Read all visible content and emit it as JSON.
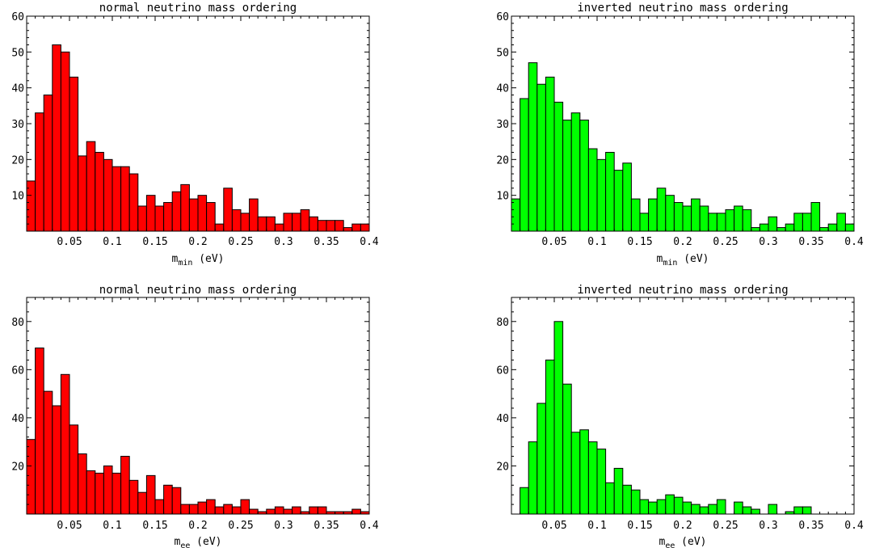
{
  "chart_data": [
    {
      "type": "bar",
      "title": "normal neutrino mass ordering",
      "xlabel_main": "m",
      "xlabel_sub": "min",
      "xlabel_unit": "(eV)",
      "xlim": [
        0,
        0.4
      ],
      "ylim": [
        0,
        60
      ],
      "xticks": [
        "0.05",
        "0.1",
        "0.15",
        "0.2",
        "0.25",
        "0.3",
        "0.35",
        "0.4"
      ],
      "yticks": [
        "10",
        "20",
        "30",
        "40",
        "50",
        "60"
      ],
      "bar_color": "#ff0000",
      "grid": false,
      "values": [
        14,
        33,
        38,
        52,
        50,
        43,
        21,
        25,
        22,
        20,
        18,
        18,
        16,
        7,
        10,
        7,
        8,
        11,
        13,
        9,
        10,
        8,
        2,
        12,
        6,
        5,
        9,
        4,
        4,
        2,
        5,
        5,
        6,
        4,
        3,
        3,
        3,
        1,
        2,
        2
      ]
    },
    {
      "type": "bar",
      "title": "inverted neutrino mass ordering",
      "xlabel_main": "m",
      "xlabel_sub": "min",
      "xlabel_unit": "(eV)",
      "xlim": [
        0,
        0.4
      ],
      "ylim": [
        0,
        60
      ],
      "xticks": [
        "0.05",
        "0.1",
        "0.15",
        "0.2",
        "0.25",
        "0.3",
        "0.35",
        "0.4"
      ],
      "yticks": [
        "10",
        "20",
        "30",
        "40",
        "50",
        "60"
      ],
      "bar_color": "#00ff00",
      "grid": false,
      "values": [
        9,
        37,
        47,
        41,
        43,
        36,
        31,
        33,
        31,
        23,
        20,
        22,
        17,
        19,
        9,
        5,
        9,
        12,
        10,
        8,
        7,
        9,
        7,
        5,
        5,
        6,
        7,
        6,
        1,
        2,
        4,
        1,
        2,
        5,
        5,
        8,
        1,
        2,
        5,
        2
      ]
    },
    {
      "type": "bar",
      "title": "normal neutrino mass ordering",
      "xlabel_main": "m",
      "xlabel_sub": "ee",
      "xlabel_unit": "(eV)",
      "xlim": [
        0,
        0.4
      ],
      "ylim": [
        0,
        90
      ],
      "xticks": [
        "0.05",
        "0.1",
        "0.15",
        "0.2",
        "0.25",
        "0.3",
        "0.35",
        "0.4"
      ],
      "yticks": [
        "20",
        "40",
        "60",
        "80"
      ],
      "bar_color": "#ff0000",
      "grid": false,
      "values": [
        31,
        69,
        51,
        45,
        58,
        37,
        25,
        18,
        17,
        20,
        17,
        24,
        14,
        9,
        16,
        6,
        12,
        11,
        4,
        4,
        5,
        6,
        3,
        4,
        3,
        6,
        2,
        1,
        2,
        3,
        2,
        3,
        1,
        3,
        3,
        1,
        1,
        1,
        2,
        1
      ]
    },
    {
      "type": "bar",
      "title": "inverted neutrino mass ordering",
      "xlabel_main": "m",
      "xlabel_sub": "ee",
      "xlabel_unit": "(eV)",
      "xlim": [
        0,
        0.4
      ],
      "ylim": [
        0,
        90
      ],
      "xticks": [
        "0.05",
        "0.1",
        "0.15",
        "0.2",
        "0.25",
        "0.3",
        "0.35",
        "0.4"
      ],
      "yticks": [
        "20",
        "40",
        "60",
        "80"
      ],
      "bar_color": "#00ff00",
      "grid": false,
      "values": [
        0,
        11,
        30,
        46,
        64,
        80,
        54,
        34,
        35,
        30,
        27,
        13,
        19,
        12,
        10,
        6,
        5,
        6,
        8,
        7,
        5,
        4,
        3,
        4,
        6,
        0,
        5,
        3,
        2,
        0,
        4,
        0,
        1,
        3,
        3
      ]
    }
  ]
}
